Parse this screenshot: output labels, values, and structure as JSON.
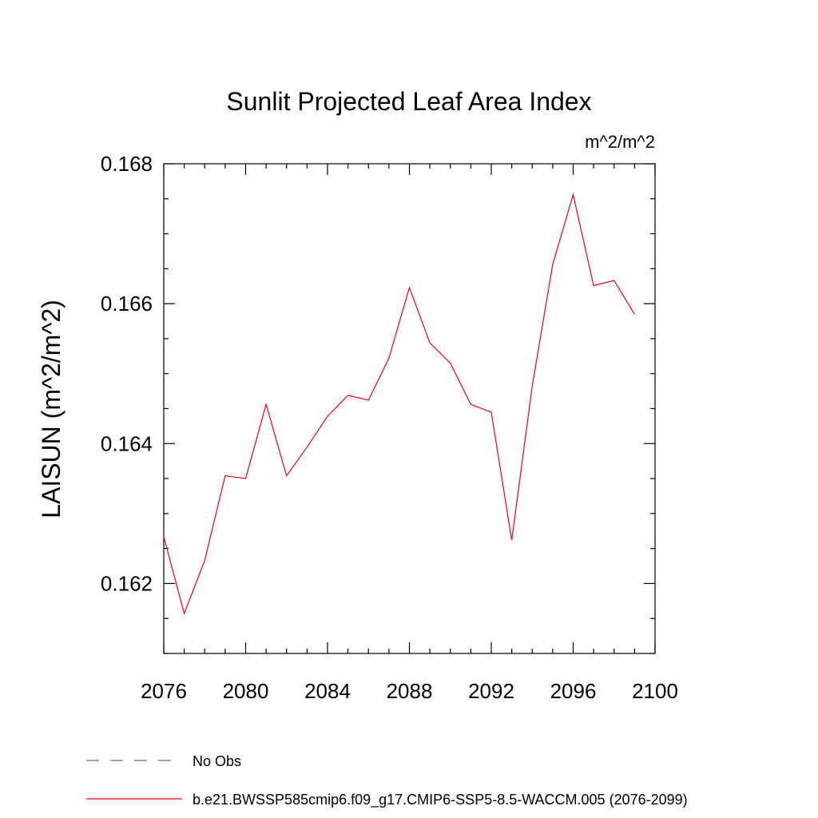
{
  "chart_data": {
    "type": "line",
    "title": "Sunlit Projected Leaf Area Index",
    "units_label": "m^2/m^2",
    "xlabel": "",
    "ylabel": "LAISUN  (m^2/m^2)",
    "xlim": [
      2076,
      2100
    ],
    "ylim": [
      0.161,
      0.168
    ],
    "x_ticks": [
      "2076",
      "2080",
      "2084",
      "2088",
      "2092",
      "2096",
      "2100"
    ],
    "x_tick_values": [
      2076,
      2080,
      2084,
      2088,
      2092,
      2096,
      2100
    ],
    "y_ticks": [
      "0.162",
      "0.164",
      "0.166",
      "0.168"
    ],
    "y_tick_values": [
      0.162,
      0.164,
      0.166,
      0.168
    ],
    "grid": false,
    "legend_position": "bottom",
    "series": [
      {
        "name": "No Obs",
        "color": "#6a5acd",
        "style": "dashed",
        "x": [],
        "values": []
      },
      {
        "name": "b.e21.BWSSP585cmip6.f09_g17.CMIP6-SSP5-8.5-WACCM.005 (2076-2099)",
        "color": "#e8001c",
        "style": "solid",
        "x": [
          2076,
          2077,
          2078,
          2079,
          2080,
          2081,
          2082,
          2083,
          2084,
          2085,
          2086,
          2087,
          2088,
          2089,
          2090,
          2091,
          2092,
          2093,
          2094,
          2095,
          2096,
          2097,
          2098,
          2099
        ],
        "values": [
          0.16267,
          0.16157,
          0.16233,
          0.16354,
          0.1635,
          0.16456,
          0.16354,
          0.16395,
          0.16439,
          0.16469,
          0.16462,
          0.16522,
          0.16623,
          0.16544,
          0.16515,
          0.16456,
          0.16445,
          0.16262,
          0.16482,
          0.16656,
          0.16756,
          0.16626,
          0.16633,
          0.16585
        ]
      }
    ]
  }
}
